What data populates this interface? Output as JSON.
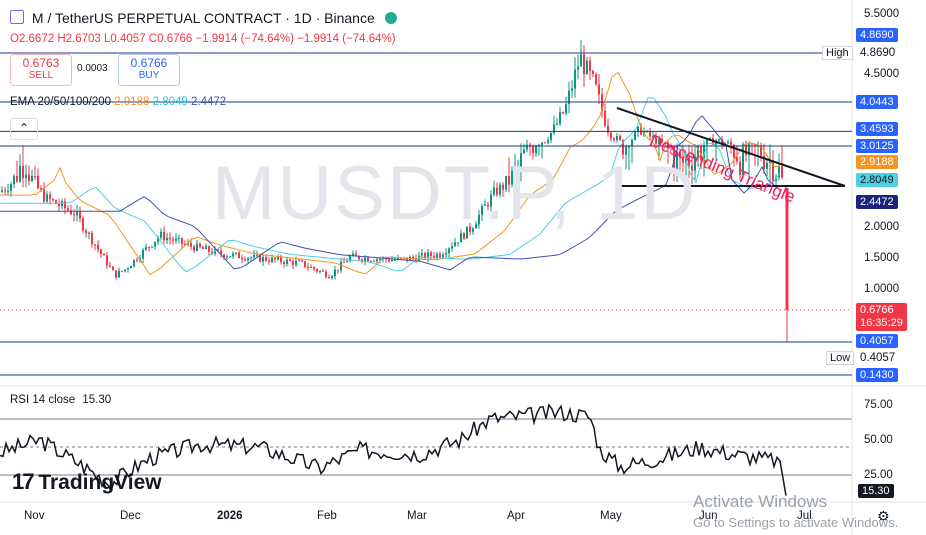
{
  "header": {
    "symbol_line": "M / TetherUS PERPETUAL CONTRACT · 1D · Binance",
    "ohlc": {
      "o": "O2.6672",
      "h": "H2.6703",
      "l": "L0.4057",
      "c": "C0.6766",
      "chg": "−1.9914 (−74.64%)",
      "chg2": "−1.9914 (−74.64%)"
    }
  },
  "trade": {
    "sell_price": "0.6763",
    "sell_label": "SELL",
    "spread": "0.0003",
    "buy_price": "0.6766",
    "buy_label": "BUY"
  },
  "ema_legend": {
    "label": "EMA 20/50/100/200",
    "v1": "2.9188",
    "v2": "2.8049",
    "v3": "2.4472",
    "c1": "#f7941d",
    "c2": "#4dd0e1",
    "c3": "#3f51b5"
  },
  "watermark": "MUSDT.P, 1D",
  "annotation": "Descending Triangle",
  "price_axis": {
    "ticks": [
      "5.5000",
      "4.5000",
      "3.5000",
      "2.0000",
      "1.5000",
      "1.0000"
    ],
    "labels": {
      "high_tag": "High",
      "high_val": "4.8690",
      "high_box": "4.8690",
      "l40443": "4.0443",
      "l34593": "3.4593",
      "l30125": "3.0125",
      "ema20": "2.9188",
      "ema50": "2.8049",
      "ema200": "2.4472",
      "last": "0.6766",
      "countdown": "16:35:29",
      "l04057": "0.4057",
      "low_tag": "Low",
      "low_val": "0.4057",
      "l01430": "0.1430"
    }
  },
  "rsi": {
    "label": "RSI 14 close",
    "value_text": "15.30",
    "ticks": [
      "75.00",
      "50.00",
      "25.00"
    ],
    "last_box": "15.30"
  },
  "time_axis": [
    "Nov",
    "Dec",
    "2026",
    "Feb",
    "Mar",
    "Apr",
    "May",
    "Jun",
    "Jul"
  ],
  "branding": "TradingView",
  "windows_notice": {
    "line1": "Activate Windows",
    "line2": "Go to Settings to activate Windows."
  },
  "chart_data": {
    "type": "candlestick",
    "title": "M / TetherUS PERPETUAL CONTRACT · 1D · Binance",
    "y_axis_ticks": [
      5.5,
      4.5,
      3.5,
      2.0,
      1.5,
      1.0
    ],
    "x_axis_labels": [
      "Nov",
      "Dec",
      "2026",
      "Feb",
      "Mar",
      "Apr",
      "May",
      "Jun",
      "Jul"
    ],
    "last_candle": {
      "open": 2.6672,
      "high": 2.6703,
      "low": 0.4057,
      "close": 0.6766
    },
    "overall_high": 4.869,
    "overall_low": 0.4057,
    "horizontal_levels": [
      4.869,
      4.0443,
      3.4593,
      3.0125,
      0.4057,
      0.143
    ],
    "series": [
      {
        "name": "EMA 20",
        "last": 2.9188
      },
      {
        "name": "EMA 50",
        "last": 2.8049
      },
      {
        "name": "EMA 100/200",
        "last": 2.4472
      }
    ],
    "rsi": {
      "period": 14,
      "last": 15.3,
      "levels": [
        70,
        50,
        30
      ],
      "ticks": [
        75,
        50,
        25
      ]
    },
    "annotation": "Descending Triangle"
  }
}
